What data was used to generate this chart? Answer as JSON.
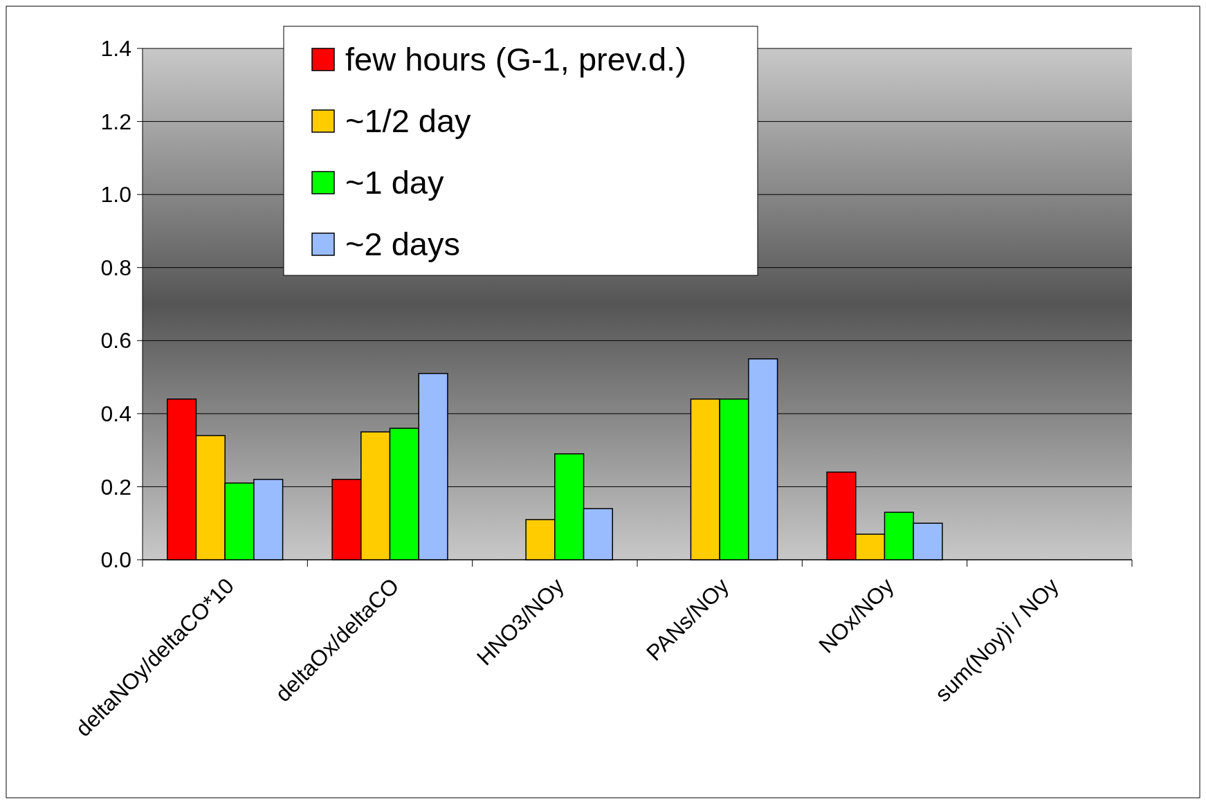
{
  "chart_data": {
    "type": "bar",
    "categories": [
      "deltaNOy/deltaCO*10",
      "deltaOx/deltaCO",
      "HNO3/NOy",
      "PANs/NOy",
      "NOx/NOy",
      "sum(Noy)i / NOy"
    ],
    "series": [
      {
        "name": "few hours (G-1, prev.d.)",
        "color": "#ff0000",
        "values": [
          0.44,
          0.22,
          null,
          null,
          0.24,
          null
        ]
      },
      {
        "name": "~1/2 day",
        "color": "#ffcc00",
        "values": [
          0.34,
          0.35,
          0.11,
          0.44,
          0.07,
          null
        ]
      },
      {
        "name": "~1 day",
        "color": "#00ff00",
        "values": [
          0.21,
          0.36,
          0.29,
          0.44,
          0.13,
          null
        ]
      },
      {
        "name": "~2 days",
        "color": "#99bbff",
        "values": [
          0.22,
          0.51,
          0.14,
          0.55,
          0.1,
          null
        ]
      }
    ],
    "ylim": [
      0,
      1.4
    ],
    "yticks": [
      {
        "value": 0,
        "label": "0.0"
      },
      {
        "value": 0.2,
        "label": "0.2"
      },
      {
        "value": 0.4,
        "label": "0.4"
      },
      {
        "value": 0.6,
        "label": "0.6"
      },
      {
        "value": 0.8,
        "label": "0.8"
      },
      {
        "value": 1,
        "label": "1.0"
      },
      {
        "value": 1.2,
        "label": "1.2"
      },
      {
        "value": 1.4,
        "label": "1.4"
      }
    ],
    "grid": "y",
    "legend": "top"
  }
}
